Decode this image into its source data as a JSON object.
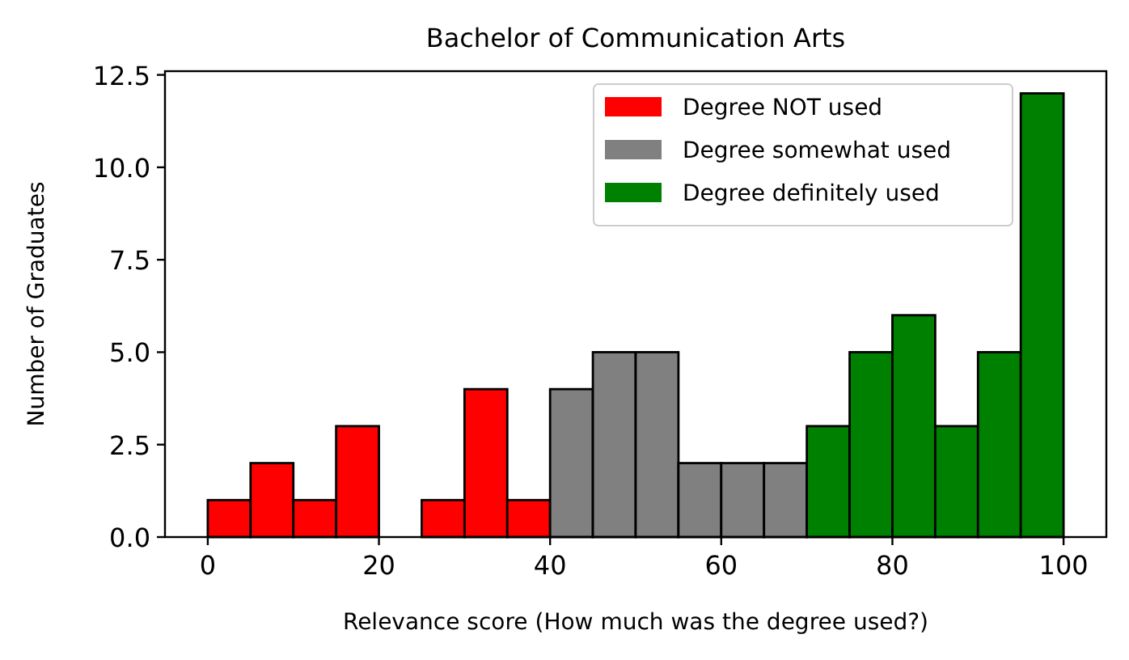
{
  "chart_data": {
    "type": "histogram",
    "title": "Bachelor of Communication Arts",
    "xlabel": "Relevance score (How much was the degree used?)",
    "ylabel": "Number of Graduates",
    "bins": [
      0,
      5,
      10,
      15,
      20,
      25,
      30,
      35,
      40,
      45,
      50,
      55,
      60,
      65,
      70,
      75,
      80,
      85,
      90,
      95,
      100
    ],
    "series": [
      {
        "name": "Degree NOT used",
        "color": "#ff0000",
        "values": [
          1,
          2,
          1,
          3,
          0,
          1,
          4,
          1,
          null,
          null,
          null,
          null,
          null,
          null,
          null,
          null,
          null,
          null,
          null,
          null
        ]
      },
      {
        "name": "Degree somewhat used",
        "color": "#808080",
        "values": [
          null,
          null,
          null,
          null,
          null,
          null,
          null,
          null,
          4,
          5,
          5,
          2,
          2,
          2,
          null,
          null,
          null,
          null,
          null,
          null
        ]
      },
      {
        "name": "Degree definitely used",
        "color": "#008000",
        "values": [
          null,
          null,
          null,
          null,
          null,
          null,
          null,
          null,
          null,
          null,
          null,
          null,
          null,
          null,
          3,
          5,
          6,
          3,
          5,
          12
        ]
      }
    ],
    "xlim": [
      -5,
      105
    ],
    "xticks": [
      0,
      20,
      40,
      60,
      80,
      100
    ],
    "ylim": [
      0,
      12.6
    ],
    "yticks": [
      {
        "value": 0,
        "label": "0.0"
      },
      2.5,
      {
        "value": 5,
        "label": "5.0"
      },
      7.5,
      {
        "value": 10,
        "label": "10.0"
      },
      12.5
    ],
    "legend": "top right"
  }
}
